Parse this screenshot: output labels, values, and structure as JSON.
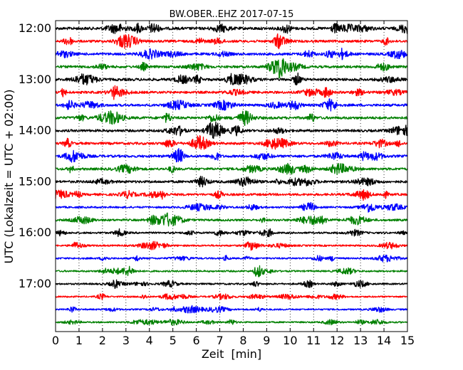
{
  "chart_data": {
    "type": "line",
    "title": "BW.OBER..EHZ 2017-07-15",
    "xlabel": "Zeit  [min]",
    "ylabel": "UTC (Lokalzeit = UTC + 02:00)",
    "xlim": [
      0,
      15
    ],
    "x_ticks": [
      "0",
      "1",
      "2",
      "3",
      "4",
      "5",
      "6",
      "7",
      "8",
      "9",
      "10",
      "11",
      "12",
      "13",
      "14",
      "15"
    ],
    "x_grid": "dotted",
    "hour_labels": [
      "12:00",
      "13:00",
      "14:00",
      "15:00",
      "16:00",
      "17:00"
    ],
    "trace_interval_min": 15,
    "trace_colors": [
      "#000000",
      "#ff0000",
      "#0000ff",
      "#008000"
    ],
    "traces": [
      {
        "start": "12:00",
        "amplitude": 0.9
      },
      {
        "start": "12:15",
        "amplitude": 0.8
      },
      {
        "start": "12:30",
        "amplitude": 0.8
      },
      {
        "start": "12:45",
        "amplitude": 0.8
      },
      {
        "start": "13:00",
        "amplitude": 0.85
      },
      {
        "start": "13:15",
        "amplitude": 0.8
      },
      {
        "start": "13:30",
        "amplitude": 0.8
      },
      {
        "start": "13:45",
        "amplitude": 0.85
      },
      {
        "start": "14:00",
        "amplitude": 0.8
      },
      {
        "start": "14:15",
        "amplitude": 0.8
      },
      {
        "start": "14:30",
        "amplitude": 0.8
      },
      {
        "start": "14:45",
        "amplitude": 0.8
      },
      {
        "start": "15:00",
        "amplitude": 0.8
      },
      {
        "start": "15:15",
        "amplitude": 0.75
      },
      {
        "start": "15:30",
        "amplitude": 0.6
      },
      {
        "start": "15:45",
        "amplitude": 0.7
      },
      {
        "start": "16:00",
        "amplitude": 0.6
      },
      {
        "start": "16:15",
        "amplitude": 0.55
      },
      {
        "start": "16:30",
        "amplitude": 0.55
      },
      {
        "start": "16:45",
        "amplitude": 0.55
      },
      {
        "start": "17:00",
        "amplitude": 0.55
      },
      {
        "start": "17:15",
        "amplitude": 0.5
      },
      {
        "start": "17:30",
        "amplitude": 0.5
      },
      {
        "start": "17:45",
        "amplitude": 0.5
      }
    ]
  }
}
